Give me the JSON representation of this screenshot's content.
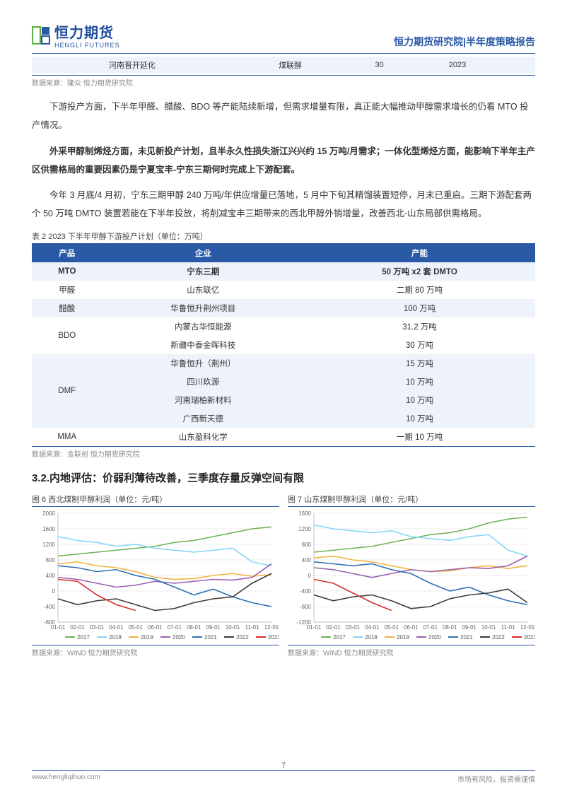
{
  "header": {
    "logo_cn": "恒力期货",
    "logo_en": "HENGLI FUTURES",
    "right_text": "恒力期货研究院|半年度策略报告"
  },
  "top_table": {
    "cells": [
      "河南晋开延化",
      "煤联醇",
      "30",
      "2023",
      ""
    ]
  },
  "source1": "数据来源：隆众  恒力期货研究院",
  "para1": "下游投产方面，下半年甲醛、醋酸、BDO 等产能陆续新增，但需求增量有限，真正能大幅推动甲醇需求增长的仍看 MTO 投产情况。",
  "para2": "外采甲醇制烯烃方面，未见新投产计划，且半永久性损失浙江兴兴约 15 万吨/月需求；一体化型烯烃方面，能影响下半年主产区供需格局的重要因素仍是宁夏宝丰-宁东三期何时完成上下游配套。",
  "para3": "今年 3 月底/4 月初，宁东三期甲醇 240 万吨/年供应增量已落地，5 月中下旬其精馏装置短停，月末已重启。三期下游配套两个 50 万吨 DMTO 装置若能在下半年投放，将削减宝丰三期带来的西北甲醇外销增量，改善西北-山东局部供需格局。",
  "table2": {
    "caption": "表 2 2023 下半年甲醇下游投产计划（单位：万吨）",
    "headers": [
      "产品",
      "企业",
      "产能"
    ],
    "rows": [
      {
        "product": "MTO",
        "company": "宁东三期",
        "cap": "50 万吨 x2 套 DMTO",
        "bold": true,
        "bg": "a"
      },
      {
        "product": "甲醛",
        "company": "山东联亿",
        "cap": "二期 80 万吨",
        "bg": "b"
      },
      {
        "product": "醋酸",
        "company": "华鲁恒升荆州项目",
        "cap": "100 万吨",
        "bg": "a"
      },
      {
        "product": "",
        "company": "内蒙古华恒能源",
        "cap": "31.2 万吨",
        "bg": "b",
        "merge_start": "BDO",
        "rowspan": 2
      },
      {
        "product": "",
        "company": "新疆中泰金晖科技",
        "cap": "30 万吨",
        "bg": "b"
      },
      {
        "product": "",
        "company": "华鲁恒升（荆州）",
        "cap": "15 万吨",
        "bg": "a",
        "merge_start": "DMF",
        "rowspan": 4
      },
      {
        "product": "",
        "company": "四川玖源",
        "cap": "10 万吨",
        "bg": "a"
      },
      {
        "product": "",
        "company": "河南瑞柏新材料",
        "cap": "10 万吨",
        "bg": "a"
      },
      {
        "product": "",
        "company": "广西新天德",
        "cap": "10 万吨",
        "bg": "a"
      },
      {
        "product": "MMA",
        "company": "山东盈科化学",
        "cap": "一期 10 万吨",
        "bg": "b"
      }
    ],
    "source": "数据来源：金联创  恒力期货研究院"
  },
  "section_heading": "3.2.内地评估：价弱利薄待改善，三季度存量反弹空间有限",
  "chart6": {
    "title": "图 6 西北煤制甲醇利润（单位：元/吨）",
    "source": "数据来源：WIND  恒力期货研究院",
    "ylim": [
      -800,
      2000
    ],
    "ytick_step": 400,
    "x_labels": [
      "01-01",
      "02-01",
      "03-01",
      "04-01",
      "05-01",
      "06-01",
      "07-01",
      "08-01",
      "09-01",
      "10-01",
      "11-01",
      "12-01"
    ],
    "legend": [
      "2017",
      "2018",
      "2019",
      "2020",
      "2021",
      "2022",
      "2023"
    ],
    "colors": [
      "#6fb25a",
      "#81d7f7",
      "#f2b23d",
      "#9b5fb0",
      "#2f6fb3",
      "#3a3a3a",
      "#d73030"
    ],
    "series": {
      "2017": [
        900,
        950,
        1000,
        1050,
        1100,
        1150,
        1250,
        1300,
        1400,
        1500,
        1600,
        1650
      ],
      "2018": [
        1400,
        1300,
        1250,
        1150,
        1200,
        1100,
        1050,
        1000,
        1050,
        1100,
        750,
        650
      ],
      "2019": [
        700,
        750,
        650,
        600,
        500,
        350,
        300,
        320,
        400,
        450,
        380,
        420
      ],
      "2020": [
        350,
        300,
        200,
        100,
        150,
        250,
        200,
        250,
        300,
        280,
        350,
        700
      ],
      "2021": [
        650,
        600,
        500,
        550,
        400,
        300,
        100,
        -100,
        50,
        -150,
        -300,
        -400
      ],
      "2022": [
        -200,
        -350,
        -250,
        -200,
        -350,
        -500,
        -450,
        -300,
        -200,
        -150,
        200,
        450
      ],
      "2023": [
        300,
        250,
        -100,
        -350,
        -500
      ]
    }
  },
  "chart7": {
    "title": "图 7 山东煤制甲醇利润（单位：元/吨）",
    "source": "数据来源：WIND  恒力期货研究院",
    "ylim": [
      -1200,
      1600
    ],
    "ytick_step": 400,
    "x_labels": [
      "01-01",
      "02-01",
      "03-01",
      "04-01",
      "05-01",
      "06-01",
      "07-01",
      "08-01",
      "09-01",
      "10-01",
      "11-01",
      "12-01"
    ],
    "legend": [
      "2017",
      "2018",
      "2019",
      "2020",
      "2021",
      "2022",
      "2023"
    ],
    "colors": [
      "#6fb25a",
      "#81d7f7",
      "#f2b23d",
      "#9b5fb0",
      "#2f6fb3",
      "#3a3a3a",
      "#d73030"
    ],
    "series": {
      "2017": [
        600,
        650,
        700,
        750,
        850,
        950,
        1050,
        1100,
        1200,
        1350,
        1450,
        1500
      ],
      "2018": [
        1300,
        1200,
        1150,
        1100,
        1150,
        1000,
        950,
        900,
        1000,
        1050,
        650,
        500
      ],
      "2019": [
        450,
        500,
        400,
        350,
        250,
        150,
        100,
        120,
        200,
        250,
        180,
        250
      ],
      "2020": [
        200,
        150,
        50,
        -50,
        50,
        150,
        100,
        150,
        200,
        180,
        250,
        500
      ],
      "2021": [
        350,
        300,
        250,
        300,
        150,
        50,
        -200,
        -400,
        -300,
        -500,
        -650,
        -750
      ],
      "2022": [
        -500,
        -650,
        -550,
        -500,
        -650,
        -850,
        -800,
        -600,
        -500,
        -450,
        -350,
        -700
      ],
      "2023": [
        -100,
        -200,
        -450,
        -700,
        -900
      ]
    }
  },
  "footer": {
    "left": "www.hengliqihuo.com",
    "right": "市场有风险，投资需谨慎",
    "page": "7"
  }
}
